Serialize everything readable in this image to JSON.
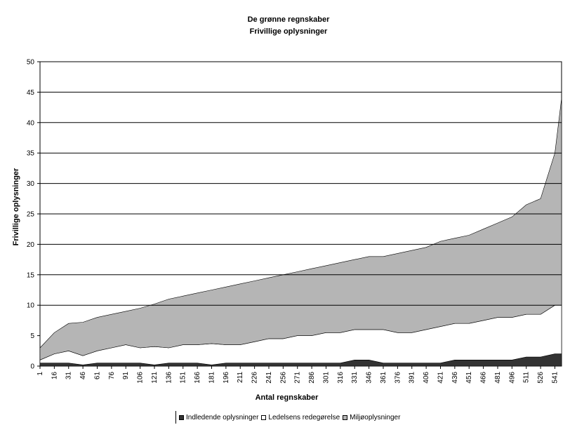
{
  "chart_data": {
    "type": "area",
    "title": "De grønne regnskaber",
    "subtitle": "Frivillige oplysninger",
    "xlabel": "Antal regnskaber",
    "ylabel": "Frivillige oplysninger",
    "ylim": [
      0,
      50
    ],
    "yticks": [
      0,
      5,
      10,
      15,
      20,
      25,
      30,
      35,
      40,
      45,
      50
    ],
    "gridlines_y": [
      10,
      15,
      20,
      25,
      30,
      35,
      40,
      45
    ],
    "xlim": [
      1,
      548
    ],
    "xticks": [
      1,
      16,
      31,
      46,
      61,
      76,
      91,
      106,
      121,
      136,
      151,
      166,
      181,
      196,
      211,
      226,
      241,
      256,
      271,
      286,
      301,
      316,
      331,
      346,
      361,
      376,
      391,
      406,
      421,
      436,
      451,
      466,
      481,
      496,
      511,
      526,
      541
    ],
    "stacked": true,
    "legend_position": "bottom",
    "series": [
      {
        "name": "Indledende oplysninger",
        "color": "#333333",
        "x": [
          1,
          16,
          31,
          46,
          61,
          76,
          91,
          106,
          121,
          136,
          151,
          166,
          181,
          196,
          211,
          226,
          241,
          256,
          271,
          286,
          301,
          316,
          331,
          346,
          361,
          376,
          391,
          406,
          421,
          436,
          451,
          466,
          481,
          496,
          511,
          526,
          541,
          548
        ],
        "values": [
          0.5,
          0.5,
          0.5,
          0.2,
          0.5,
          0.5,
          0.5,
          0.5,
          0.2,
          0.5,
          0.5,
          0.5,
          0.2,
          0.5,
          0.5,
          0.5,
          0.5,
          0.5,
          0.5,
          0.5,
          0.5,
          0.5,
          1,
          1,
          0.5,
          0.5,
          0.5,
          0.5,
          0.5,
          1,
          1,
          1,
          1,
          1,
          1.5,
          1.5,
          2,
          2
        ]
      },
      {
        "name": "Ledelsens redegørelse",
        "color": "#ffffff",
        "x": [
          1,
          16,
          31,
          46,
          61,
          76,
          91,
          106,
          121,
          136,
          151,
          166,
          181,
          196,
          211,
          226,
          241,
          256,
          271,
          286,
          301,
          316,
          331,
          346,
          361,
          376,
          391,
          406,
          421,
          436,
          451,
          466,
          481,
          496,
          511,
          526,
          541,
          548
        ],
        "values": [
          0.5,
          1.5,
          2,
          1.5,
          2,
          2.5,
          3,
          2.5,
          3,
          2.5,
          3,
          3,
          3.5,
          3,
          3,
          3.5,
          4,
          4,
          4.5,
          4.5,
          5,
          5,
          5,
          5,
          5.5,
          5,
          5,
          5.5,
          6,
          6,
          6,
          6.5,
          7,
          7,
          7,
          7,
          8,
          8
        ]
      },
      {
        "name": "Miljøoplysninger",
        "color": "#b5b5b5",
        "x": [
          1,
          16,
          31,
          46,
          61,
          76,
          91,
          106,
          121,
          136,
          151,
          166,
          181,
          196,
          211,
          226,
          241,
          256,
          271,
          286,
          301,
          316,
          331,
          346,
          361,
          376,
          391,
          406,
          421,
          436,
          451,
          466,
          481,
          496,
          511,
          526,
          541,
          548
        ],
        "values": [
          2,
          3.5,
          4.5,
          5.5,
          5.5,
          5.5,
          5.5,
          6.5,
          7,
          8,
          8,
          8.5,
          8.8,
          9.5,
          10,
          10,
          10,
          10.5,
          10.5,
          11,
          11,
          11.5,
          11.5,
          12,
          12,
          13,
          13.5,
          13.5,
          14,
          14,
          14.5,
          15,
          15.5,
          16.5,
          18,
          19,
          25,
          34
        ]
      }
    ]
  }
}
